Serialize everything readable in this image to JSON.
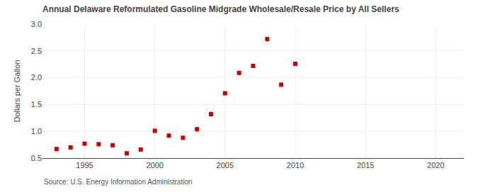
{
  "chart_data": {
    "type": "scatter",
    "title": "Annual Delaware Reformulated Gasoline Midgrade Wholesale/Resale Price by All Sellers",
    "y_label": "Dollars per Gallon",
    "annotations": [
      "Source: U.S. Energy Information Administration"
    ],
    "x": [
      1993,
      1994,
      1995,
      1996,
      1997,
      1998,
      1999,
      2000,
      2001,
      2002,
      2003,
      2004,
      2005,
      2006,
      2007,
      2008,
      2009,
      2010
    ],
    "values": [
      0.67,
      0.7,
      0.77,
      0.76,
      0.74,
      0.59,
      0.66,
      1.01,
      0.92,
      0.88,
      1.04,
      1.32,
      1.71,
      2.09,
      2.22,
      2.72,
      1.87,
      2.26
    ],
    "color": "#cc0000",
    "marker": "square",
    "xlim": [
      1992,
      2022
    ],
    "xticks": [
      1995,
      2000,
      2005,
      2010,
      2015,
      2020
    ],
    "ylim": [
      0.5,
      3.0
    ],
    "yticks": [
      0.5,
      {
        "value": 1.0,
        "label": "1.0"
      },
      1.5,
      {
        "value": 2.0,
        "label": "2.0"
      },
      2.5,
      {
        "value": 3.0,
        "label": "3.0"
      }
    ],
    "grid": true
  }
}
